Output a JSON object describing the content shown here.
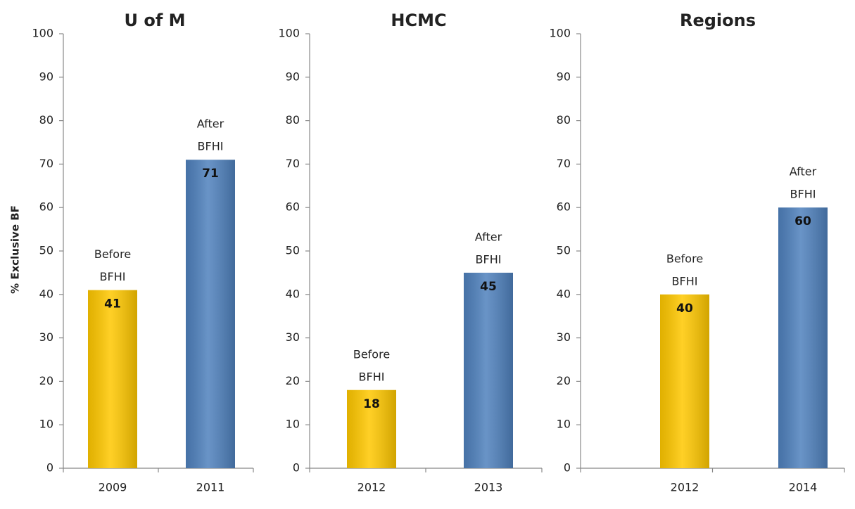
{
  "chart_data": [
    {
      "type": "bar",
      "title": "U of M",
      "y_label": "% Exclusive BF",
      "categories": [
        "2009",
        "2011"
      ],
      "values": [
        41,
        71
      ],
      "colors": [
        "#ffc800",
        "#4f81bd"
      ],
      "bar_labels": [
        [
          "Before",
          "BFHI"
        ],
        [
          "After",
          "BFHI"
        ]
      ],
      "ylim": [
        0,
        100
      ],
      "yticks": [
        0,
        10,
        20,
        30,
        40,
        50,
        60,
        70,
        80,
        90,
        100
      ]
    },
    {
      "type": "bar",
      "title": "HCMC",
      "categories": [
        "2012",
        "2013"
      ],
      "values": [
        18,
        45
      ],
      "colors": [
        "#ffc800",
        "#4f81bd"
      ],
      "bar_labels": [
        [
          "Before",
          "BFHI"
        ],
        [
          "After",
          "BFHI"
        ]
      ],
      "ylim": [
        0,
        100
      ],
      "yticks": [
        0,
        10,
        20,
        30,
        40,
        50,
        60,
        70,
        80,
        90,
        100
      ]
    },
    {
      "type": "bar",
      "title": "Regions",
      "categories": [
        "2012",
        "2014"
      ],
      "values": [
        40,
        60
      ],
      "colors": [
        "#ffc800",
        "#4f81bd"
      ],
      "bar_labels": [
        [
          "Before",
          "BFHI"
        ],
        [
          "After",
          "BFHI"
        ]
      ],
      "ylim": [
        0,
        100
      ],
      "yticks": [
        0,
        10,
        20,
        30,
        40,
        50,
        60,
        70,
        80,
        90,
        100
      ]
    }
  ]
}
